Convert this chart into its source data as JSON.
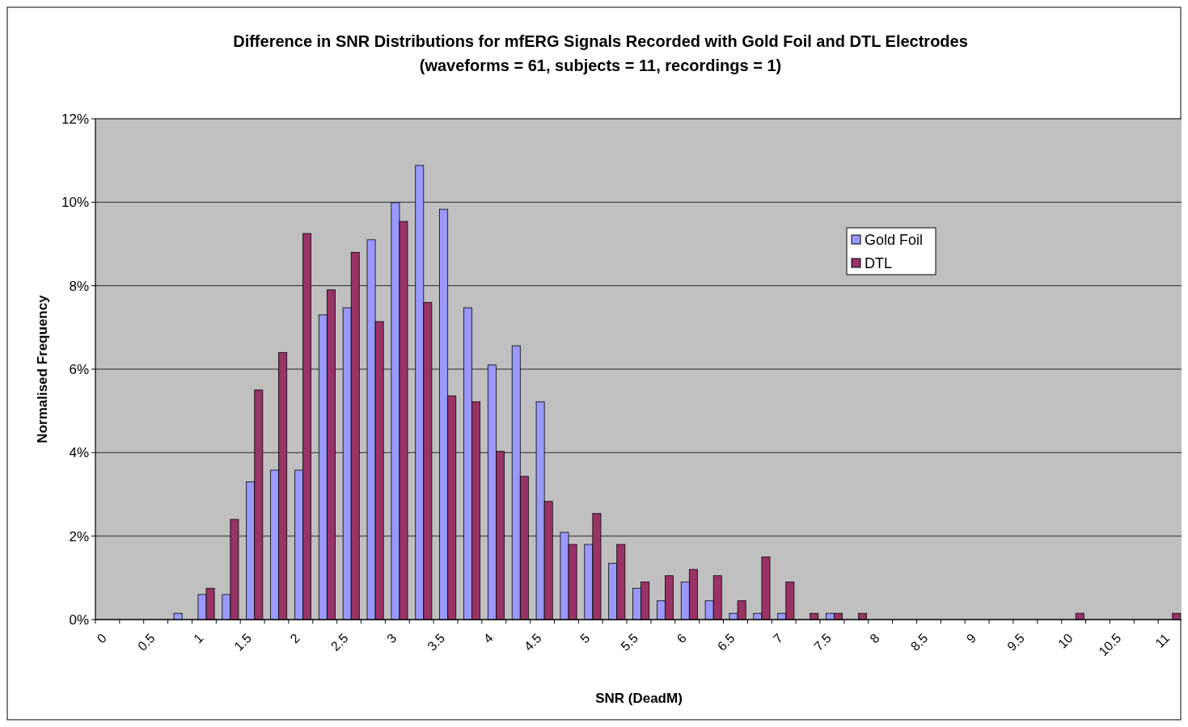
{
  "chart_data": {
    "type": "bar",
    "title": "Difference in SNR Distributions for mfERG Signals Recorded with Gold Foil and DTL Electrodes",
    "subtitle": "(waveforms = 61, subjects = 11, recordings = 1)",
    "xlabel": "SNR (DeadM)",
    "ylabel": "Normalised Frequency",
    "categories": [
      "0",
      null,
      "0.5",
      null,
      "1",
      null,
      "1.5",
      null,
      "2",
      null,
      "2.5",
      null,
      "3",
      null,
      "3.5",
      null,
      "4",
      null,
      "4.5",
      null,
      "5",
      null,
      "5.5",
      null,
      "6",
      null,
      "6.5",
      null,
      "7",
      null,
      "7.5",
      null,
      "8",
      null,
      "8.5",
      null,
      "9",
      null,
      "9.5",
      null,
      "10",
      null,
      "10.5",
      null,
      "11"
    ],
    "series": [
      {
        "name": "Gold Foil",
        "color": "#9999ff",
        "values": [
          0,
          0,
          0,
          0.15,
          0.6,
          0.6,
          3.3,
          3.58,
          3.58,
          7.3,
          7.47,
          9.1,
          9.99,
          10.88,
          9.83,
          7.47,
          6.1,
          6.56,
          5.22,
          2.09,
          1.8,
          1.35,
          0.75,
          0.45,
          0.9,
          0.45,
          0.15,
          0.15,
          0.15,
          0,
          0.15,
          0,
          0,
          0,
          0,
          0,
          0,
          0,
          0,
          0,
          0,
          0,
          0,
          0,
          0
        ]
      },
      {
        "name": "DTL",
        "color": "#993366",
        "values": [
          0,
          0,
          0,
          0,
          0.75,
          2.4,
          5.5,
          6.4,
          9.25,
          7.9,
          8.8,
          7.14,
          9.54,
          7.6,
          5.36,
          5.22,
          4.03,
          3.43,
          2.83,
          1.8,
          2.54,
          1.8,
          0.9,
          1.05,
          1.2,
          1.05,
          0.45,
          1.5,
          0.9,
          0.15,
          0.15,
          0.15,
          0,
          0,
          0,
          0,
          0,
          0,
          0,
          0,
          0.15,
          0,
          0,
          0,
          0.15
        ]
      }
    ],
    "ylim": [
      0,
      12
    ],
    "yticks": [
      {
        "value": 0,
        "label": "0%"
      },
      {
        "value": 2,
        "label": "2%"
      },
      {
        "value": 4,
        "label": "4%"
      },
      {
        "value": 6,
        "label": "6%"
      },
      {
        "value": 8,
        "label": "8%"
      },
      {
        "value": 10,
        "label": "10%"
      },
      {
        "value": 12,
        "label": "12%"
      }
    ],
    "grid": "y",
    "legend": "top right"
  }
}
